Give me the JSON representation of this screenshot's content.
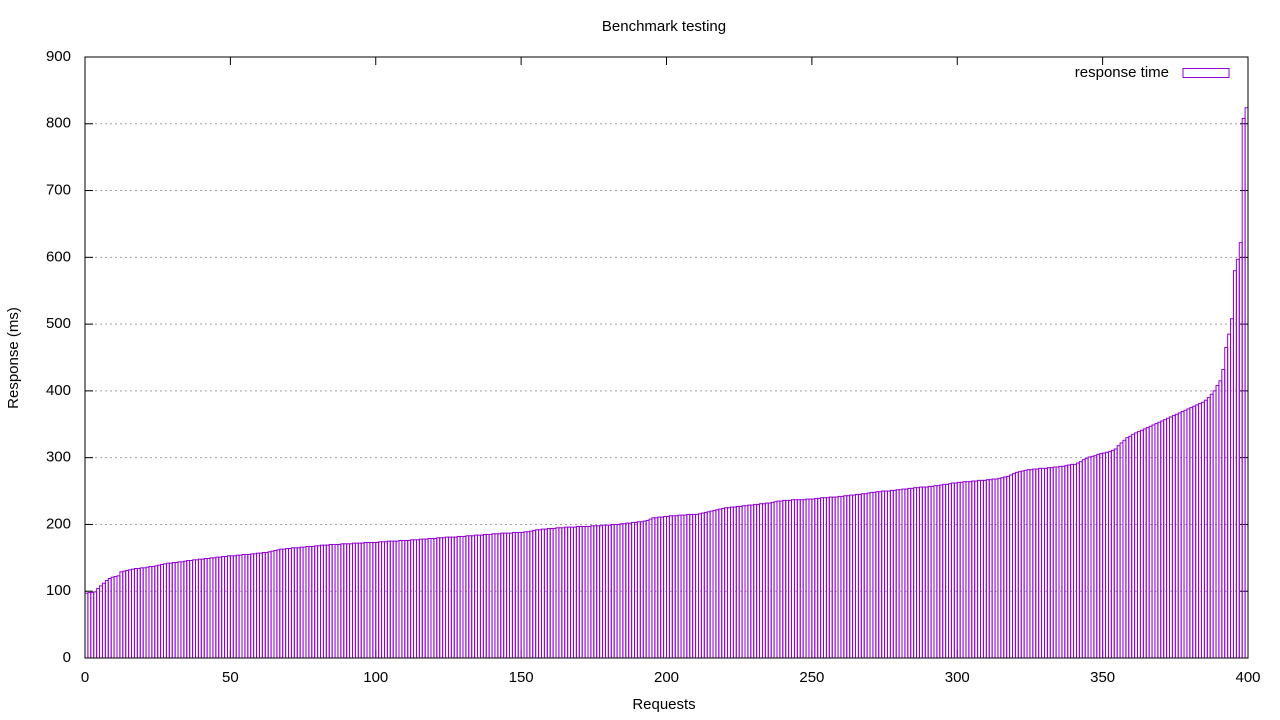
{
  "chart_data": {
    "type": "bar",
    "title": "Benchmark testing",
    "x_label": "Requests",
    "y_label": "Response (ms)",
    "legend_position": "top-right",
    "grid": true,
    "xlim": [
      0,
      400
    ],
    "xticks": [
      0,
      50,
      100,
      150,
      200,
      250,
      300,
      350,
      400
    ],
    "ylim": [
      0,
      900
    ],
    "yticks": [
      0,
      100,
      200,
      300,
      400,
      500,
      600,
      700,
      800,
      900
    ],
    "x": [
      0,
      1,
      2,
      3,
      4,
      5,
      6,
      7,
      8,
      9,
      10,
      11,
      12,
      13,
      14,
      15,
      16,
      17,
      18,
      19,
      20,
      21,
      22,
      23,
      24,
      25,
      26,
      27,
      28,
      29,
      30,
      31,
      32,
      33,
      34,
      35,
      36,
      37,
      38,
      39,
      40,
      41,
      42,
      43,
      44,
      45,
      46,
      47,
      48,
      49,
      50,
      51,
      52,
      53,
      54,
      55,
      56,
      57,
      58,
      59,
      60,
      61,
      62,
      63,
      64,
      65,
      66,
      67,
      68,
      69,
      70,
      71,
      72,
      73,
      74,
      75,
      76,
      77,
      78,
      79,
      80,
      81,
      82,
      83,
      84,
      85,
      86,
      87,
      88,
      89,
      90,
      91,
      92,
      93,
      94,
      95,
      96,
      97,
      98,
      99,
      100,
      101,
      102,
      103,
      104,
      105,
      106,
      107,
      108,
      109,
      110,
      111,
      112,
      113,
      114,
      115,
      116,
      117,
      118,
      119,
      120,
      121,
      122,
      123,
      124,
      125,
      126,
      127,
      128,
      129,
      130,
      131,
      132,
      133,
      134,
      135,
      136,
      137,
      138,
      139,
      140,
      141,
      142,
      143,
      144,
      145,
      146,
      147,
      148,
      149,
      150,
      151,
      152,
      153,
      154,
      155,
      156,
      157,
      158,
      159,
      160,
      161,
      162,
      163,
      164,
      165,
      166,
      167,
      168,
      169,
      170,
      171,
      172,
      173,
      174,
      175,
      176,
      177,
      178,
      179,
      180,
      181,
      182,
      183,
      184,
      185,
      186,
      187,
      188,
      189,
      190,
      191,
      192,
      193,
      194,
      195,
      196,
      197,
      198,
      199,
      200,
      201,
      202,
      203,
      204,
      205,
      206,
      207,
      208,
      209,
      210,
      211,
      212,
      213,
      214,
      215,
      216,
      217,
      218,
      219,
      220,
      221,
      222,
      223,
      224,
      225,
      226,
      227,
      228,
      229,
      230,
      231,
      232,
      233,
      234,
      235,
      236,
      237,
      238,
      239,
      240,
      241,
      242,
      243,
      244,
      245,
      246,
      247,
      248,
      249,
      250,
      251,
      252,
      253,
      254,
      255,
      256,
      257,
      258,
      259,
      260,
      261,
      262,
      263,
      264,
      265,
      266,
      267,
      268,
      269,
      270,
      271,
      272,
      273,
      274,
      275,
      276,
      277,
      278,
      279,
      280,
      281,
      282,
      283,
      284,
      285,
      286,
      287,
      288,
      289,
      290,
      291,
      292,
      293,
      294,
      295,
      296,
      297,
      298,
      299,
      300,
      301,
      302,
      303,
      304,
      305,
      306,
      307,
      308,
      309,
      310,
      311,
      312,
      313,
      314,
      315,
      316,
      317,
      318,
      319,
      320,
      321,
      322,
      323,
      324,
      325,
      326,
      327,
      328,
      329,
      330,
      331,
      332,
      333,
      334,
      335,
      336,
      337,
      338,
      339,
      340,
      341,
      342,
      343,
      344,
      345,
      346,
      347,
      348,
      349,
      350,
      351,
      352,
      353,
      354,
      355,
      356,
      357,
      358,
      359,
      360,
      361,
      362,
      363,
      364,
      365,
      366,
      367,
      368,
      369,
      370,
      371,
      372,
      373,
      374,
      375,
      376,
      377,
      378,
      379,
      380,
      381,
      382,
      383,
      384,
      385,
      386,
      387,
      388,
      389,
      390,
      391,
      392,
      393,
      394,
      395,
      396,
      397,
      398,
      399
    ],
    "series": [
      {
        "name": "response time",
        "color": "#9400d3",
        "values": [
          97,
          98,
          98,
          99,
          104,
          108,
          112,
          116,
          119,
          121,
          122,
          123,
          129,
          130,
          131,
          132,
          133,
          134,
          134,
          135,
          135,
          136,
          137,
          137,
          138,
          139,
          140,
          141,
          142,
          142,
          143,
          143,
          144,
          144,
          145,
          146,
          146,
          147,
          147,
          148,
          148,
          149,
          149,
          150,
          150,
          151,
          151,
          152,
          152,
          153,
          153,
          153,
          154,
          154,
          155,
          155,
          155,
          156,
          156,
          157,
          157,
          158,
          158,
          159,
          160,
          161,
          162,
          163,
          163,
          164,
          164,
          165,
          165,
          165,
          166,
          166,
          167,
          167,
          167,
          168,
          168,
          169,
          169,
          169,
          170,
          170,
          170,
          170,
          171,
          171,
          171,
          171,
          172,
          172,
          172,
          172,
          173,
          173,
          173,
          173,
          173,
          174,
          174,
          174,
          175,
          175,
          175,
          175,
          176,
          176,
          176,
          176,
          177,
          177,
          177,
          178,
          178,
          178,
          179,
          179,
          179,
          180,
          180,
          180,
          181,
          181,
          181,
          181,
          182,
          182,
          182,
          183,
          183,
          183,
          184,
          184,
          184,
          185,
          185,
          185,
          186,
          186,
          186,
          187,
          187,
          187,
          187,
          188,
          188,
          188,
          188,
          189,
          189,
          190,
          191,
          192,
          192,
          193,
          193,
          194,
          194,
          194,
          195,
          195,
          195,
          196,
          196,
          196,
          196,
          197,
          197,
          197,
          197,
          197,
          198,
          198,
          198,
          198,
          199,
          199,
          199,
          200,
          200,
          200,
          201,
          201,
          202,
          202,
          203,
          203,
          204,
          204,
          205,
          206,
          208,
          210,
          210,
          211,
          211,
          212,
          212,
          213,
          213,
          213,
          214,
          214,
          214,
          215,
          215,
          215,
          215,
          216,
          217,
          218,
          219,
          220,
          221,
          222,
          223,
          224,
          225,
          225,
          226,
          226,
          227,
          227,
          228,
          228,
          229,
          229,
          230,
          230,
          231,
          231,
          232,
          232,
          233,
          234,
          235,
          235,
          236,
          236,
          236,
          237,
          237,
          237,
          237,
          237,
          238,
          238,
          238,
          239,
          239,
          240,
          240,
          240,
          241,
          241,
          241,
          242,
          242,
          243,
          243,
          244,
          244,
          245,
          245,
          246,
          246,
          247,
          248,
          248,
          249,
          249,
          250,
          250,
          250,
          251,
          251,
          252,
          252,
          253,
          253,
          254,
          254,
          255,
          255,
          256,
          256,
          256,
          257,
          257,
          258,
          258,
          259,
          260,
          260,
          261,
          262,
          262,
          263,
          263,
          264,
          264,
          264,
          265,
          265,
          266,
          266,
          266,
          267,
          267,
          268,
          268,
          269,
          270,
          271,
          272,
          274,
          276,
          278,
          279,
          280,
          281,
          282,
          282,
          283,
          283,
          284,
          284,
          284,
          285,
          285,
          286,
          286,
          287,
          287,
          288,
          289,
          290,
          290,
          292,
          294,
          297,
          299,
          301,
          302,
          303,
          305,
          306,
          307,
          308,
          309,
          311,
          313,
          318,
          322,
          326,
          330,
          332,
          335,
          337,
          339,
          341,
          343,
          345,
          347,
          349,
          351,
          353,
          355,
          357,
          359,
          361,
          363,
          365,
          367,
          369,
          371,
          373,
          375,
          377,
          379,
          381,
          383,
          386,
          390,
          395,
          400,
          408,
          415,
          432,
          465,
          485,
          508,
          580,
          597,
          622,
          808,
          824
        ]
      }
    ]
  }
}
